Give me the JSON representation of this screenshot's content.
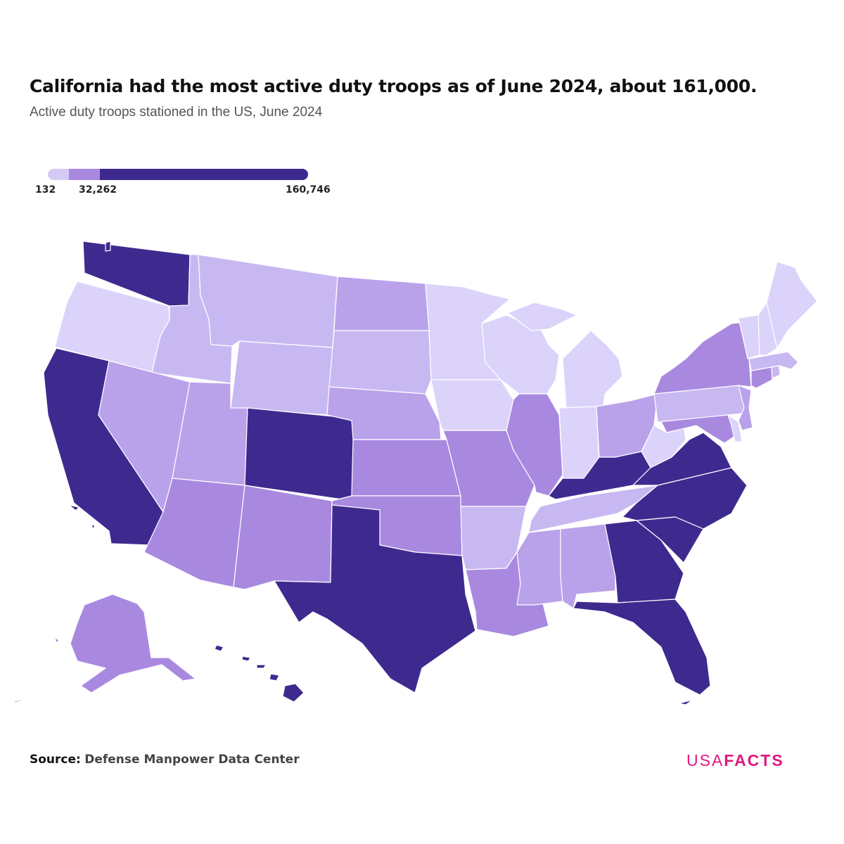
{
  "title": "California had the most active duty troops as of June 2024, about 161,000.",
  "subtitle": "Active duty troops stationed in the US, June 2024",
  "legend": {
    "min_label": "132",
    "mid_label": "32,262",
    "max_label": "160,746",
    "colors": [
      "#d5caf6",
      "#a989e0",
      "#3e2a8f"
    ]
  },
  "palette": {
    "lightest": "#dcd3fb",
    "light": "#c8b8f2",
    "medium_light": "#b9a2ea",
    "medium": "#a989e0",
    "dark": "#3e2a8f"
  },
  "chart_data": {
    "type": "choropleth",
    "scale_min": 132,
    "scale_max": 160746,
    "regions": [
      {
        "state": "WA",
        "shade": "dark"
      },
      {
        "state": "OR",
        "shade": "lightest"
      },
      {
        "state": "CA",
        "shade": "dark"
      },
      {
        "state": "ID",
        "shade": "light"
      },
      {
        "state": "NV",
        "shade": "medium_light"
      },
      {
        "state": "MT",
        "shade": "light"
      },
      {
        "state": "WY",
        "shade": "light"
      },
      {
        "state": "UT",
        "shade": "medium_light"
      },
      {
        "state": "AZ",
        "shade": "medium"
      },
      {
        "state": "CO",
        "shade": "dark"
      },
      {
        "state": "NM",
        "shade": "medium"
      },
      {
        "state": "ND",
        "shade": "medium_light"
      },
      {
        "state": "SD",
        "shade": "light"
      },
      {
        "state": "NE",
        "shade": "medium_light"
      },
      {
        "state": "KS",
        "shade": "medium"
      },
      {
        "state": "OK",
        "shade": "medium"
      },
      {
        "state": "TX",
        "shade": "dark"
      },
      {
        "state": "MN",
        "shade": "lightest"
      },
      {
        "state": "IA",
        "shade": "lightest"
      },
      {
        "state": "MO",
        "shade": "medium"
      },
      {
        "state": "AR",
        "shade": "light"
      },
      {
        "state": "LA",
        "shade": "medium"
      },
      {
        "state": "WI",
        "shade": "lightest"
      },
      {
        "state": "IL",
        "shade": "medium"
      },
      {
        "state": "MI",
        "shade": "lightest"
      },
      {
        "state": "IN",
        "shade": "lightest"
      },
      {
        "state": "OH",
        "shade": "medium_light"
      },
      {
        "state": "KY",
        "shade": "dark"
      },
      {
        "state": "TN",
        "shade": "light"
      },
      {
        "state": "MS",
        "shade": "medium_light"
      },
      {
        "state": "AL",
        "shade": "medium_light"
      },
      {
        "state": "GA",
        "shade": "dark"
      },
      {
        "state": "FL",
        "shade": "dark"
      },
      {
        "state": "SC",
        "shade": "dark"
      },
      {
        "state": "NC",
        "shade": "dark"
      },
      {
        "state": "VA",
        "shade": "dark"
      },
      {
        "state": "WV",
        "shade": "lightest"
      },
      {
        "state": "MD",
        "shade": "medium"
      },
      {
        "state": "DE",
        "shade": "lightest"
      },
      {
        "state": "PA",
        "shade": "light"
      },
      {
        "state": "NJ",
        "shade": "medium_light"
      },
      {
        "state": "NY",
        "shade": "medium"
      },
      {
        "state": "CT",
        "shade": "medium"
      },
      {
        "state": "RI",
        "shade": "light"
      },
      {
        "state": "MA",
        "shade": "light"
      },
      {
        "state": "VT",
        "shade": "lightest"
      },
      {
        "state": "NH",
        "shade": "lightest"
      },
      {
        "state": "ME",
        "shade": "lightest"
      },
      {
        "state": "AK",
        "shade": "medium"
      },
      {
        "state": "HI",
        "shade": "dark"
      }
    ]
  },
  "source": {
    "label": "Source:",
    "value": "Defense Manpower Data Center"
  },
  "logo": {
    "part1": "USA",
    "part2": "FACTS"
  }
}
